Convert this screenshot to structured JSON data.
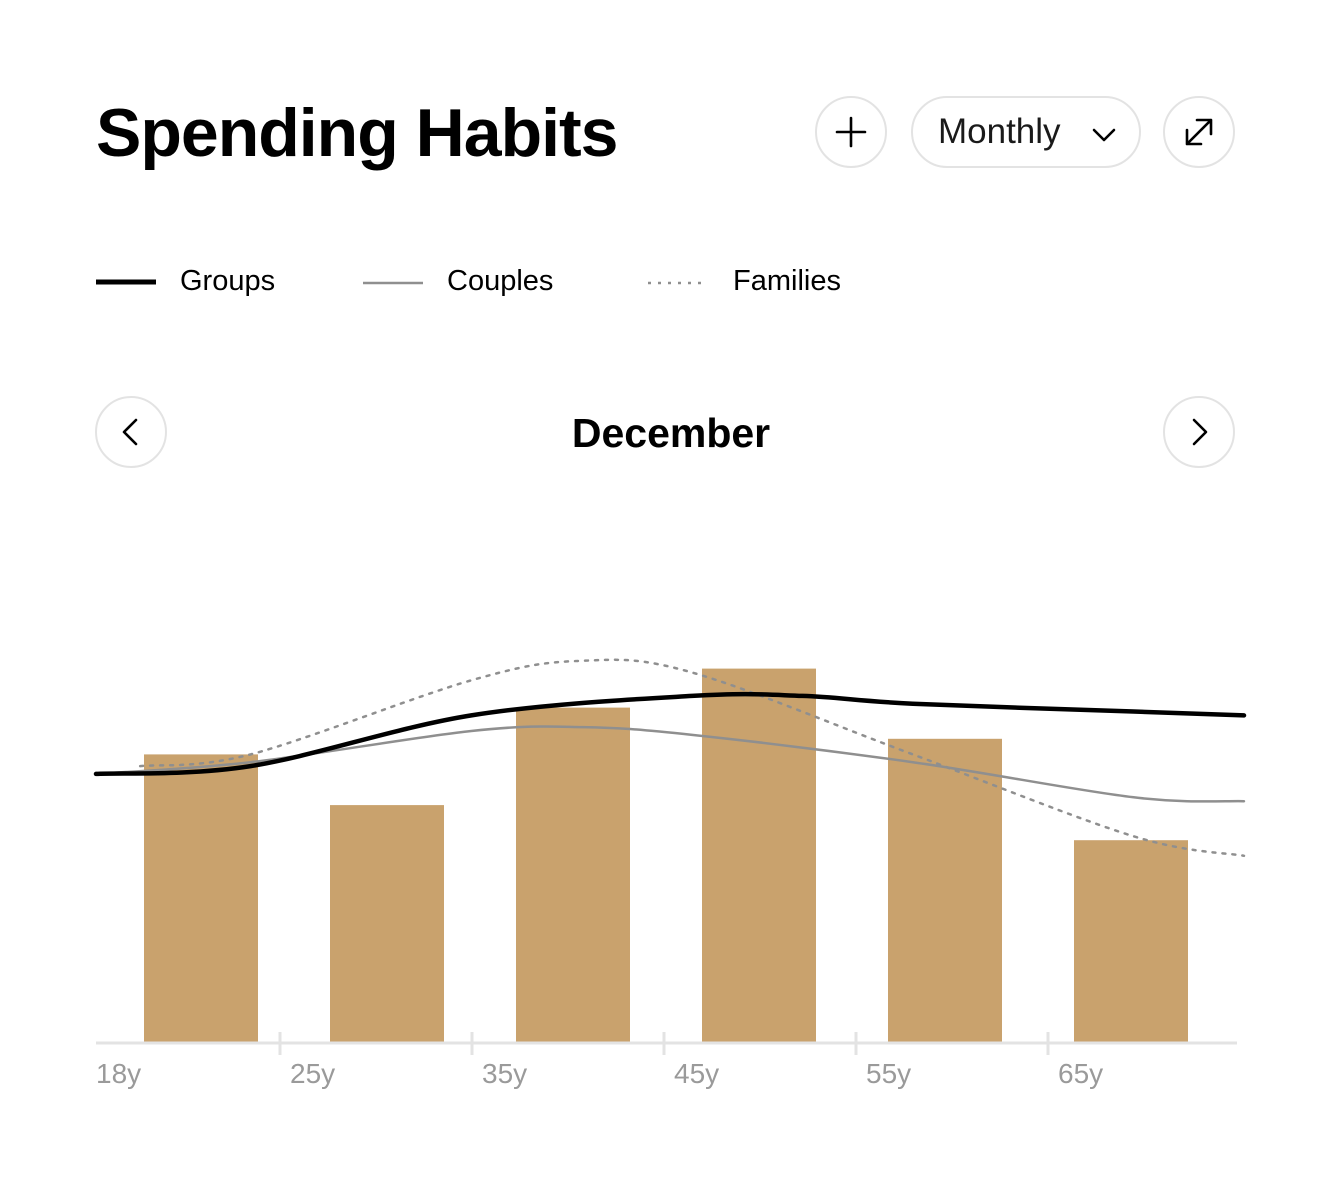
{
  "header": {
    "title": "Spending Habits",
    "period_select": "Monthly"
  },
  "icons": {
    "add": "plus-icon",
    "period_dropdown": "chevron-down-icon",
    "expand": "expand-icon",
    "previous": "chevron-left-icon",
    "next": "chevron-right-icon"
  },
  "navigator": {
    "current_period": "December"
  },
  "legend": [
    {
      "label": "Groups",
      "style": "solid-thick"
    },
    {
      "label": "Couples",
      "style": "solid-thin"
    },
    {
      "label": "Families",
      "style": "dotted"
    }
  ],
  "colors": {
    "bar": "#c9a26d",
    "groups": "#000000",
    "couples": "#8f8f8f",
    "families": "#8f8f8f",
    "axis": "#e3e3e3",
    "tick_text": "#9a9a9a",
    "button_border": "#e3e3e3"
  },
  "chart_data": {
    "type": "bar",
    "x_axis": {
      "tick_labels": [
        "18y",
        "25y",
        "35y",
        "45y",
        "55y",
        "65y"
      ]
    },
    "bars": {
      "values": [
        74,
        61,
        86,
        96,
        78,
        52
      ],
      "ylim": [
        0,
        100
      ]
    },
    "series": [
      {
        "name": "Groups",
        "type": "line",
        "points": [
          [
            18,
            69
          ],
          [
            25,
            71
          ],
          [
            35,
            84
          ],
          [
            45,
            89
          ],
          [
            50,
            89
          ],
          [
            55,
            87
          ],
          [
            65,
            85
          ],
          [
            70,
            84
          ]
        ]
      },
      {
        "name": "Couples",
        "type": "line",
        "points": [
          [
            18,
            69
          ],
          [
            25,
            72
          ],
          [
            35,
            80
          ],
          [
            40,
            81
          ],
          [
            45,
            79
          ],
          [
            55,
            72
          ],
          [
            65,
            63
          ],
          [
            70,
            62
          ]
        ]
      },
      {
        "name": "Families",
        "type": "line",
        "points": [
          [
            20,
            71
          ],
          [
            25,
            74
          ],
          [
            35,
            93
          ],
          [
            40,
            98
          ],
          [
            45,
            95
          ],
          [
            55,
            74
          ],
          [
            65,
            53
          ],
          [
            70,
            48
          ]
        ]
      }
    ],
    "xlim": [
      18,
      70
    ],
    "ylim": [
      0,
      100
    ],
    "grid": false,
    "legend_position": "top-left"
  }
}
